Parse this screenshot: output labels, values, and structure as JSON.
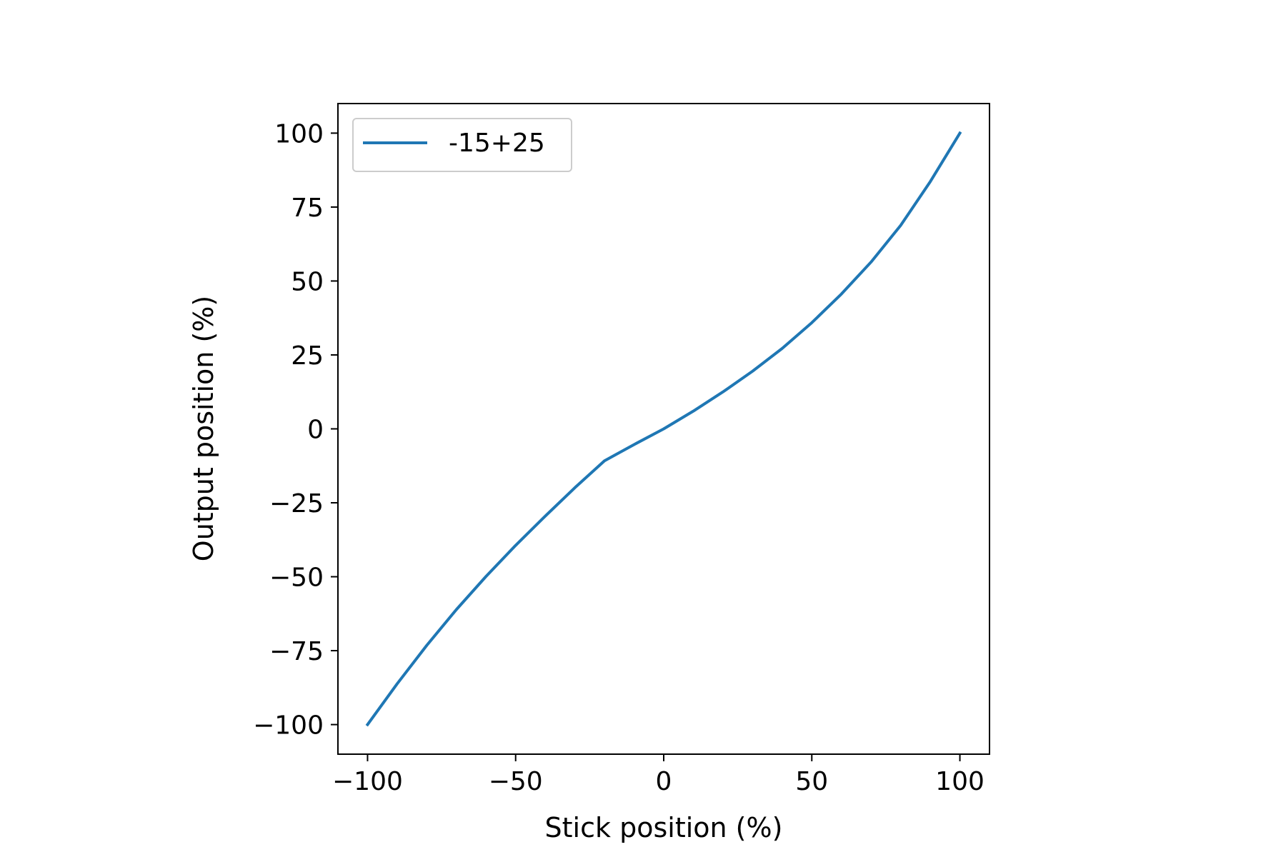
{
  "chart_data": {
    "type": "line",
    "xlabel": "Stick position (%)",
    "ylabel": "Output position (%)",
    "xlim": [
      -110,
      110
    ],
    "ylim": [
      -110,
      110
    ],
    "xticks": [
      -100,
      -50,
      0,
      50,
      100
    ],
    "xtick_labels": [
      "−100",
      "−50",
      "0",
      "50",
      "100"
    ],
    "yticks": [
      -100,
      -75,
      -50,
      -25,
      0,
      25,
      50,
      75,
      100
    ],
    "ytick_labels": [
      "−100",
      "−75",
      "−50",
      "−25",
      "0",
      "25",
      "50",
      "75",
      "100"
    ],
    "grid": false,
    "legend": "upper left",
    "colors": {
      "series": "#1f77b4",
      "axes": "#000000",
      "legend_border": "#cccccc"
    },
    "series": [
      {
        "name": "-15+25",
        "x": [
          -100,
          -90,
          -80,
          -70,
          -60,
          -50,
          -40,
          -30,
          -20,
          -10,
          0,
          10,
          20,
          30,
          40,
          50,
          60,
          70,
          80,
          90,
          100
        ],
        "y": [
          -100,
          -86.2,
          -73.2,
          -61.1,
          -49.9,
          -39.4,
          -29.5,
          -19.9,
          -10.8,
          -5.3,
          0,
          6.0,
          12.5,
          19.5,
          27.2,
          35.9,
          45.6,
          56.4,
          68.8,
          83.6,
          100
        ]
      }
    ]
  }
}
